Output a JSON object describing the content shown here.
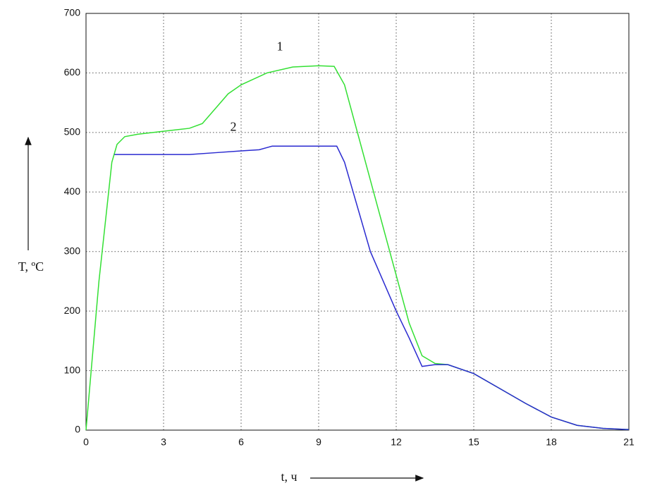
{
  "chart_data": {
    "type": "line",
    "xlabel": "t, ч",
    "ylabel": "T, ºC",
    "xlim": [
      0,
      21
    ],
    "xticks": [
      0,
      3,
      6,
      9,
      12,
      15,
      18,
      21
    ],
    "ylim": [
      0,
      700
    ],
    "yticks": [
      0,
      100,
      200,
      300,
      400,
      500,
      600,
      700
    ],
    "grid": true,
    "series": [
      {
        "name": "1",
        "color": "#33e033",
        "x": [
          0,
          0.5,
          1,
          1.2,
          1.5,
          2,
          3,
          4,
          4.5,
          5,
          5.5,
          6,
          7,
          8,
          9,
          9.6,
          10,
          11,
          12,
          12.5,
          13,
          13.5,
          14,
          15,
          16,
          17,
          18,
          19,
          20,
          21
        ],
        "values": [
          0,
          250,
          450,
          480,
          493,
          497,
          502,
          507,
          515,
          540,
          565,
          580,
          600,
          610,
          612,
          611,
          580,
          420,
          260,
          180,
          125,
          112,
          110,
          95,
          70,
          45,
          22,
          8,
          3,
          1
        ]
      },
      {
        "name": "2",
        "color": "#2a2ad0",
        "x": [
          1.1,
          2,
          3,
          4,
          5,
          6,
          6.7,
          7.2,
          8,
          9,
          9.7,
          10,
          11,
          12,
          12.5,
          13,
          13.5,
          14,
          15,
          16,
          17,
          18,
          19,
          20,
          21
        ],
        "values": [
          463,
          463,
          463,
          463,
          466,
          469,
          471,
          477,
          477,
          477,
          477,
          450,
          300,
          200,
          155,
          107,
          110,
          110,
          95,
          70,
          45,
          22,
          8,
          3,
          1
        ]
      }
    ]
  }
}
